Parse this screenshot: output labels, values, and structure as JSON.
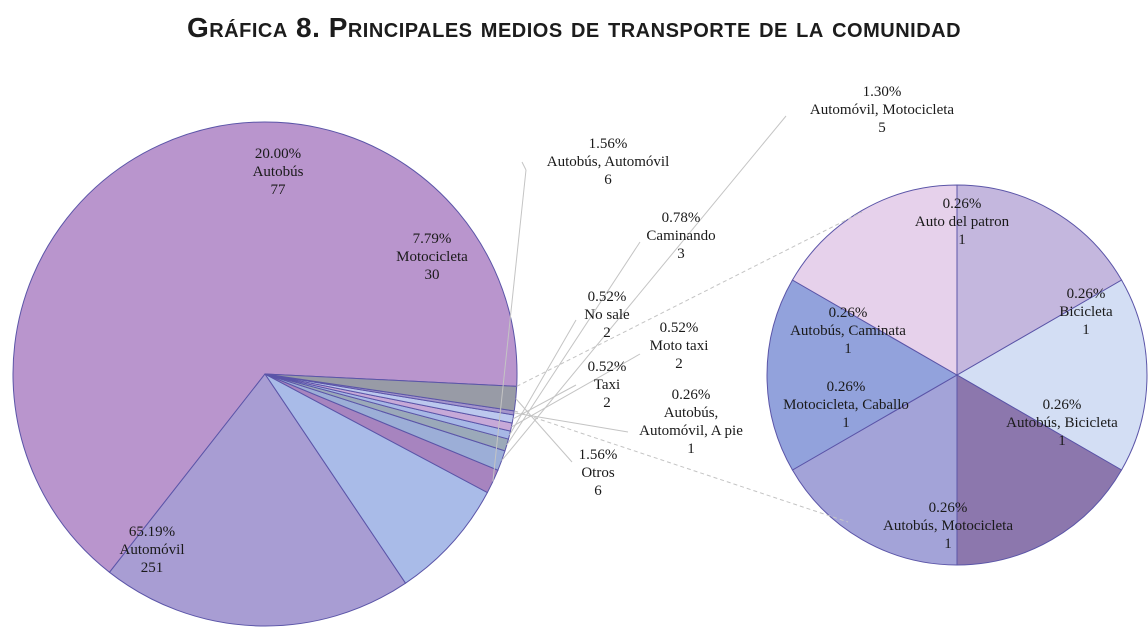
{
  "chart_data": {
    "type": "pie",
    "title": "Gráfica 8. Principales medios de transporte de la comunidad",
    "main_pie": {
      "slices": [
        {
          "name": "Automóvil",
          "percent": "65.19%",
          "count": 251,
          "color": "#b995cd"
        },
        {
          "name": "Autobús",
          "percent": "20.00%",
          "count": 77,
          "color": "#a89dd3"
        },
        {
          "name": "Motocicleta",
          "percent": "7.79%",
          "count": 30,
          "color": "#a9bbe8"
        },
        {
          "name": "Autobús, Automóvil",
          "percent": "1.56%",
          "count": 6,
          "color": "#a784bf"
        },
        {
          "name": "Automóvil, Motocicleta",
          "percent": "1.30%",
          "count": 5,
          "color": "#9caed7"
        },
        {
          "name": "Caminando",
          "percent": "0.78%",
          "count": 3,
          "color": "#9ba9b9"
        },
        {
          "name": "No sale",
          "percent": "0.52%",
          "count": 2,
          "color": "#a7b8e6"
        },
        {
          "name": "Moto taxi",
          "percent": "0.52%",
          "count": 2,
          "color": "#c7a9d8"
        },
        {
          "name": "Taxi",
          "percent": "0.52%",
          "count": 2,
          "color": "#bcc8ee"
        },
        {
          "name": "Autobús, Automóvil, A pie",
          "percent": "0.26%",
          "count": 1,
          "color": "#a596cc"
        },
        {
          "name": "Otros",
          "percent": "1.56%",
          "count": 6,
          "color": "#989ba6"
        }
      ]
    },
    "sub_pie": {
      "of": "Otros",
      "slices": [
        {
          "name": "Auto del patron",
          "percent": "0.26%",
          "count": 1,
          "color": "#d3def4"
        },
        {
          "name": "Bicicleta",
          "percent": "0.26%",
          "count": 1,
          "color": "#8c77ad"
        },
        {
          "name": "Autobús, Bicicleta",
          "percent": "0.26%",
          "count": 1,
          "color": "#a3a3d8"
        },
        {
          "name": "Autobús, Motocicleta",
          "percent": "0.26%",
          "count": 1,
          "color": "#92a2dc"
        },
        {
          "name": "Motocicleta, Caballo",
          "percent": "0.26%",
          "count": 1,
          "color": "#e6d1eb"
        },
        {
          "name": "Autobús, Caminata",
          "percent": "0.26%",
          "count": 1,
          "color": "#c4b7de"
        }
      ]
    }
  }
}
